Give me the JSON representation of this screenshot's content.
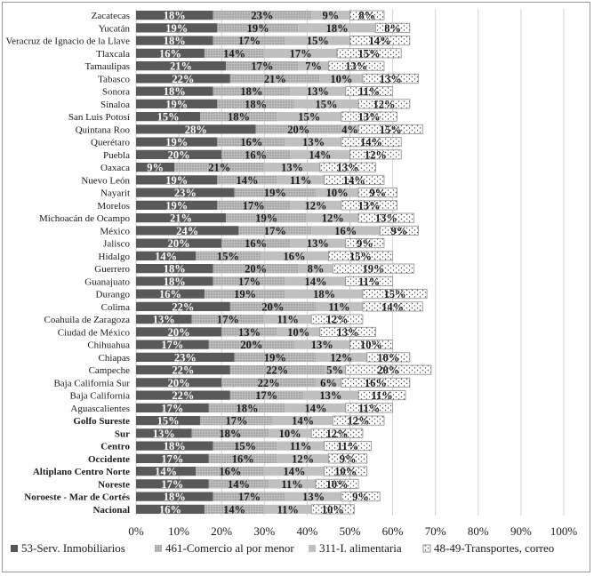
{
  "chart_data": {
    "type": "bar",
    "orientation": "horizontal",
    "stacked": true,
    "categories": [
      "Zacatecas",
      "Yucatán",
      "Veracruz de Ignacio de la Llave",
      "Tlaxcala",
      "Tamaulipas",
      "Tabasco",
      "Sonora",
      "Sinaloa",
      "San Luis Potosí",
      "Quintana Roo",
      "Querétaro",
      "Puebla",
      "Oaxaca",
      "Nuevo León",
      "Nayarit",
      "Morelos",
      "Michoacán de Ocampo",
      "México",
      "Jalisco",
      "Hidalgo",
      "Guerrero",
      "Guanajuato",
      "Durango",
      "Colima",
      "Coahuila de Zaragoza",
      "Ciudad de México",
      "Chihuahua",
      "Chiapas",
      "Campeche",
      "Baja California Sur",
      "Baja California",
      "Aguascalientes",
      "Golfo Sureste",
      "Sur",
      "Centro",
      "Occidente",
      "Altiplano Centro Norte",
      "Noreste",
      "Noroeste - Mar de Cortés",
      "Nacional"
    ],
    "bold_categories": [
      "Golfo Sureste",
      "Sur",
      "Centro",
      "Occidente",
      "Altiplano Centro Norte",
      "Noreste",
      "Noroeste - Mar de Cortés",
      "Nacional"
    ],
    "series": [
      {
        "name": "53-Serv. Inmobiliarios",
        "color": "#595959",
        "label_color": "#ffffff",
        "values": [
          18,
          19,
          18,
          16,
          21,
          22,
          18,
          19,
          15,
          28,
          19,
          20,
          9,
          19,
          23,
          19,
          21,
          24,
          20,
          14,
          18,
          18,
          16,
          22,
          13,
          20,
          17,
          23,
          22,
          20,
          22,
          17,
          15,
          13,
          18,
          17,
          14,
          17,
          18,
          16
        ]
      },
      {
        "name": "461-Comercio al por menor",
        "color": "#a6a6a6",
        "label_color": "#1a1a1a",
        "values": [
          23,
          19,
          17,
          14,
          17,
          21,
          18,
          18,
          18,
          20,
          16,
          16,
          21,
          14,
          19,
          17,
          19,
          17,
          16,
          15,
          20,
          17,
          19,
          20,
          17,
          13,
          20,
          19,
          22,
          22,
          17,
          18,
          17,
          18,
          15,
          16,
          16,
          14,
          17,
          14
        ]
      },
      {
        "name": "311-I. alimentaria",
        "color": "#c0c0c0",
        "label_color": "#1a1a1a",
        "values": [
          9,
          18,
          15,
          17,
          7,
          10,
          13,
          15,
          15,
          4,
          13,
          14,
          13,
          11,
          10,
          12,
          12,
          16,
          13,
          16,
          8,
          14,
          18,
          11,
          11,
          10,
          13,
          12,
          5,
          6,
          13,
          14,
          14,
          10,
          11,
          12,
          14,
          11,
          13,
          11
        ]
      },
      {
        "name": "48-49-Transportes, correo",
        "color": "#ffffff",
        "label_color": "#1a1a1a",
        "values": [
          8,
          8,
          14,
          15,
          13,
          13,
          11,
          12,
          13,
          15,
          14,
          12,
          13,
          14,
          9,
          13,
          13,
          9,
          9,
          15,
          19,
          11,
          15,
          14,
          12,
          13,
          10,
          10,
          20,
          16,
          11,
          11,
          12,
          12,
          11,
          9,
          10,
          10,
          9,
          10
        ]
      }
    ],
    "value_suffix": "%",
    "x_ticks": [
      "0%",
      "10%",
      "20%",
      "30%",
      "40%",
      "50%",
      "60%",
      "70%",
      "80%",
      "90%",
      "100%"
    ],
    "xlim": [
      0,
      100
    ],
    "grid": true,
    "legend_position": "bottom",
    "title": "",
    "xlabel": "",
    "ylabel": ""
  }
}
